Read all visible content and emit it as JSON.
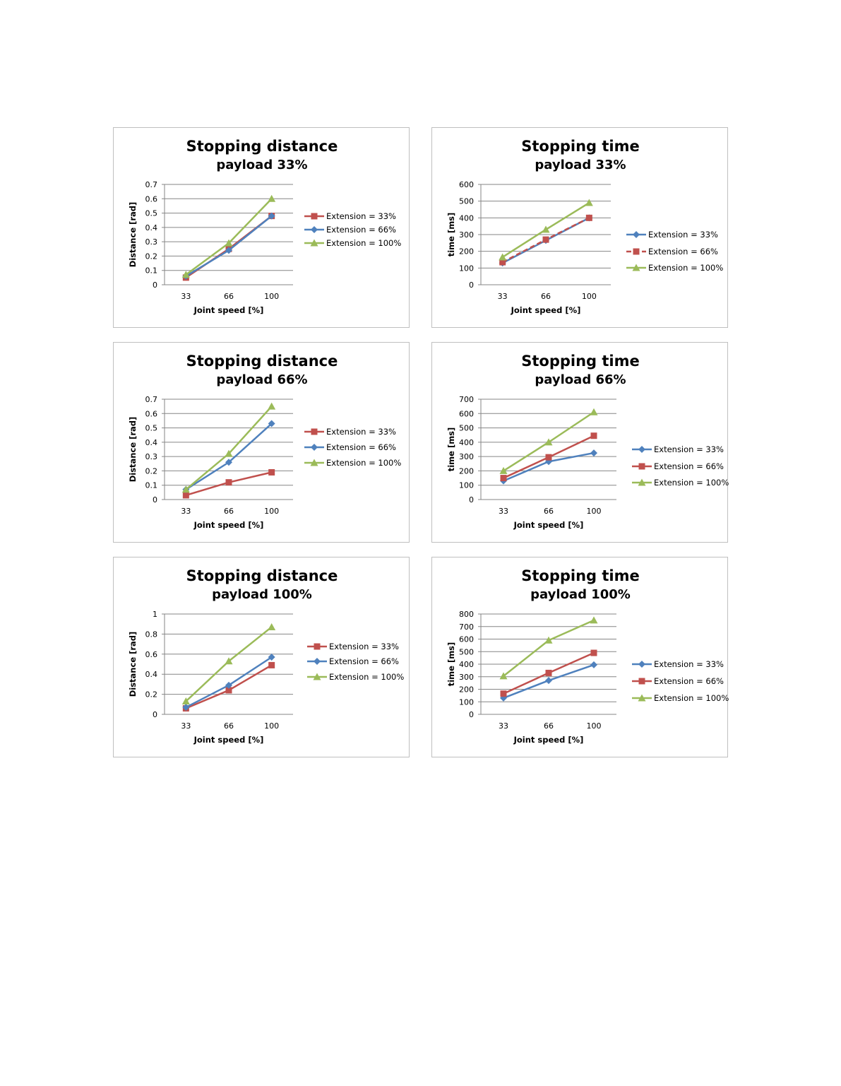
{
  "colors": {
    "ext33": "#C0504D",
    "ext66": "#4F81BD",
    "ext100": "#9BBB59",
    "grid": "#868686",
    "border": "#bfbfbf"
  },
  "chart_data": [
    {
      "type": "line",
      "title": "Stopping distance",
      "subtitle": "payload 33%",
      "xlabel": "Joint speed [%]",
      "ylabel": "Distance [rad]",
      "categories": [
        "33",
        "66",
        "100"
      ],
      "ylim": [
        0,
        0.7
      ],
      "yticks": [
        "0",
        "0.1",
        "0.2",
        "0.3",
        "0.4",
        "0.5",
        "0.6",
        "0.7"
      ],
      "legend_order": [
        0,
        1,
        2
      ],
      "series": [
        {
          "name": "Extension = 33%",
          "marker": "square",
          "color": "#C0504D",
          "values": [
            0.05,
            0.25,
            0.48
          ]
        },
        {
          "name": "Extension = 66%",
          "marker": "diamond",
          "color": "#4F81BD",
          "values": [
            0.06,
            0.24,
            0.48
          ]
        },
        {
          "name": "Extension = 100%",
          "marker": "triangle",
          "color": "#9BBB59",
          "values": [
            0.07,
            0.29,
            0.6
          ]
        }
      ]
    },
    {
      "type": "line",
      "title": "Stopping time",
      "subtitle": "payload 33%",
      "xlabel": "Joint speed [%]",
      "ylabel": "time [ms]",
      "categories": [
        "33",
        "66",
        "100"
      ],
      "ylim": [
        0,
        600
      ],
      "yticks": [
        "0",
        "100",
        "200",
        "300",
        "400",
        "500",
        "600"
      ],
      "legend_order": [
        0,
        1,
        2
      ],
      "series": [
        {
          "name": "Extension = 33%",
          "marker": "diamond",
          "color": "#4F81BD",
          "values": [
            130,
            265,
            400
          ]
        },
        {
          "name": "Extension = 66%",
          "marker": "square",
          "color": "#C0504D",
          "dashed": true,
          "values": [
            135,
            270,
            400
          ]
        },
        {
          "name": "Extension = 100%",
          "marker": "triangle",
          "color": "#9BBB59",
          "values": [
            165,
            330,
            490
          ]
        }
      ]
    },
    {
      "type": "line",
      "title": "Stopping distance",
      "subtitle": "payload 66%",
      "xlabel": "Joint speed [%]",
      "ylabel": "Distance [rad]",
      "categories": [
        "33",
        "66",
        "100"
      ],
      "ylim": [
        0,
        0.7
      ],
      "yticks": [
        "0",
        "0.1",
        "0.2",
        "0.3",
        "0.4",
        "0.5",
        "0.6",
        "0.7"
      ],
      "legend_order": [
        0,
        1,
        2
      ],
      "series": [
        {
          "name": "Extension = 33%",
          "marker": "square",
          "color": "#C0504D",
          "values": [
            0.03,
            0.12,
            0.19
          ]
        },
        {
          "name": "Extension = 66%",
          "marker": "diamond",
          "color": "#4F81BD",
          "values": [
            0.07,
            0.26,
            0.53
          ]
        },
        {
          "name": "Extension = 100%",
          "marker": "triangle",
          "color": "#9BBB59",
          "values": [
            0.07,
            0.32,
            0.65
          ]
        }
      ]
    },
    {
      "type": "line",
      "title": "Stopping time",
      "subtitle": "payload 66%",
      "xlabel": "Joint speed [%]",
      "ylabel": "time [ms]",
      "categories": [
        "33",
        "66",
        "100"
      ],
      "ylim": [
        0,
        700
      ],
      "yticks": [
        "0",
        "100",
        "200",
        "300",
        "400",
        "500",
        "600",
        "700"
      ],
      "legend_order": [
        0,
        1,
        2
      ],
      "series": [
        {
          "name": "Extension = 33%",
          "marker": "diamond",
          "color": "#4F81BD",
          "values": [
            130,
            265,
            325
          ]
        },
        {
          "name": "Extension = 66%",
          "marker": "square",
          "color": "#C0504D",
          "values": [
            150,
            295,
            445
          ]
        },
        {
          "name": "Extension = 100%",
          "marker": "triangle",
          "color": "#9BBB59",
          "values": [
            200,
            400,
            610
          ]
        }
      ]
    },
    {
      "type": "line",
      "title": "Stopping distance",
      "subtitle": "payload 100%",
      "xlabel": "Joint speed [%]",
      "ylabel": "Distance [rad]",
      "categories": [
        "33",
        "66",
        "100"
      ],
      "ylim": [
        0,
        1
      ],
      "yticks": [
        "0",
        "0.2",
        "0.4",
        "0.6",
        "0.8",
        "1"
      ],
      "legend_order": [
        0,
        1,
        2
      ],
      "series": [
        {
          "name": "Extension = 33%",
          "marker": "square",
          "color": "#C0504D",
          "values": [
            0.06,
            0.24,
            0.49
          ]
        },
        {
          "name": "Extension = 66%",
          "marker": "diamond",
          "color": "#4F81BD",
          "values": [
            0.07,
            0.29,
            0.57
          ]
        },
        {
          "name": "Extension = 100%",
          "marker": "triangle",
          "color": "#9BBB59",
          "values": [
            0.13,
            0.53,
            0.87
          ]
        }
      ]
    },
    {
      "type": "line",
      "title": "Stopping time",
      "subtitle": "payload 100%",
      "xlabel": "Joint speed [%]",
      "ylabel": "time [ms]",
      "categories": [
        "33",
        "66",
        "100"
      ],
      "ylim": [
        0,
        800
      ],
      "yticks": [
        "0",
        "100",
        "200",
        "300",
        "400",
        "500",
        "600",
        "700",
        "800"
      ],
      "legend_order": [
        0,
        1,
        2
      ],
      "series": [
        {
          "name": "Extension = 33%",
          "marker": "diamond",
          "color": "#4F81BD",
          "values": [
            130,
            270,
            395
          ]
        },
        {
          "name": "Extension = 66%",
          "marker": "square",
          "color": "#C0504D",
          "values": [
            165,
            330,
            490
          ]
        },
        {
          "name": "Extension = 100%",
          "marker": "triangle",
          "color": "#9BBB59",
          "values": [
            305,
            590,
            750
          ]
        }
      ]
    }
  ]
}
